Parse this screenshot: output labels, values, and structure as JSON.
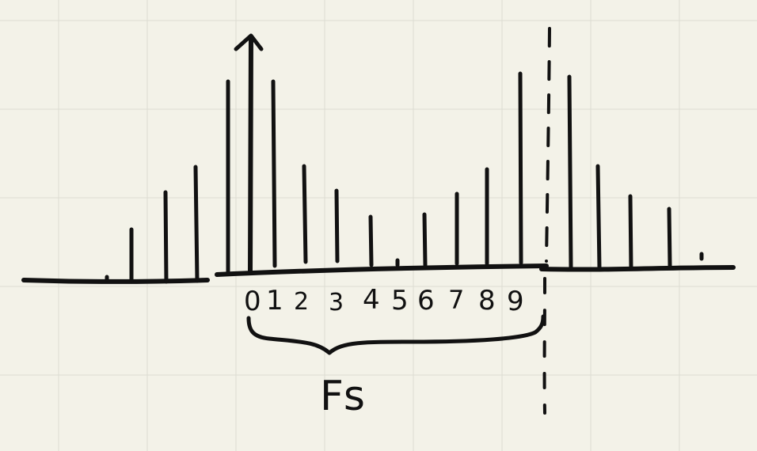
{
  "sketch": {
    "index_labels": [
      "0",
      "1",
      "2",
      "3",
      "4",
      "5",
      "6",
      "7",
      "8",
      "9"
    ],
    "brace_label": "Fs"
  },
  "colors": {
    "paper": "#f3f2e8",
    "grid": "#dcdcd2",
    "ink": "#111111"
  }
}
